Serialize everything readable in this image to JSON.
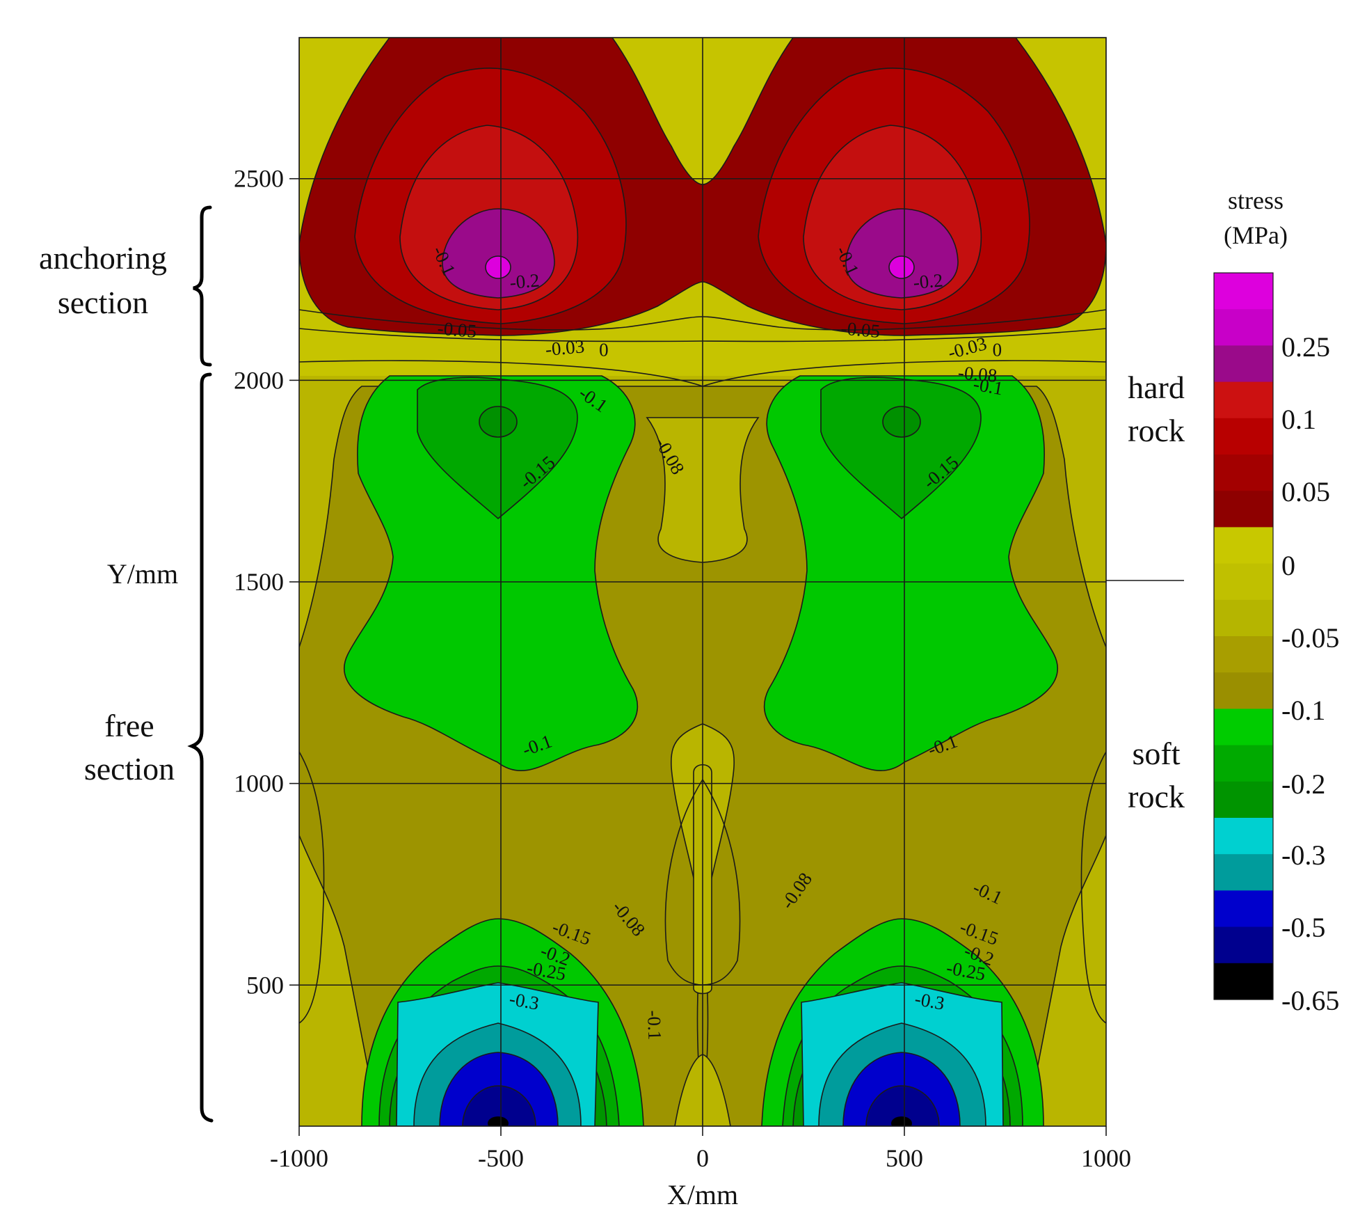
{
  "chart_data": {
    "type": "contour",
    "xlabel": "X/mm",
    "ylabel": "Y/mm",
    "xlim": [
      -1000,
      1000
    ],
    "ylim": [
      150,
      2850
    ],
    "x_ticks": [
      -1000,
      -500,
      0,
      500,
      1000
    ],
    "y_ticks": [
      500,
      1000,
      1500,
      2000,
      2500
    ],
    "grid": true,
    "colorbar": {
      "title_line1": "stress",
      "title_line2": "(MPa)",
      "tick_labels": [
        "0.25",
        "0.1",
        "0.05",
        "0",
        "-0.05",
        "-0.1",
        "-0.2",
        "-0.3",
        "-0.5",
        "-0.65"
      ],
      "colors": [
        "#dd00dd",
        "#c800c8",
        "#9a0a8a",
        "#cc1111",
        "#b80000",
        "#a30000",
        "#8e0000",
        "#c8c800",
        "#c0c000",
        "#b5b500",
        "#a89e00",
        "#9a8f00",
        "#00cc00",
        "#00aa00",
        "#009400",
        "#00d0d0",
        "#009c9c",
        "#0000cc",
        "#00008e",
        "#000000"
      ]
    },
    "annotations": {
      "anchoring_line1": "anchoring",
      "anchoring_line2": "section",
      "free_line1": "free",
      "free_line2": "section",
      "hard_line1": "hard",
      "hard_line2": "rock",
      "soft_line1": "soft",
      "soft_line2": "rock"
    },
    "contour_labels": [
      {
        "text": "-0.1",
        "x": -655,
        "y": 2290,
        "rot": 65
      },
      {
        "text": "-0.2",
        "x": -440,
        "y": 2230,
        "rot": -5
      },
      {
        "text": "-0.05",
        "x": -610,
        "y": 2110,
        "rot": 5
      },
      {
        "text": "-0.03",
        "x": -340,
        "y": 2065,
        "rot": -5
      },
      {
        "text": "0",
        "x": -245,
        "y": 2060,
        "rot": 0
      },
      {
        "text": "-0.1",
        "x": 345,
        "y": 2290,
        "rot": 65
      },
      {
        "text": "-0.2",
        "x": 560,
        "y": 2230,
        "rot": -5
      },
      {
        "text": "-0.05",
        "x": 390,
        "y": 2110,
        "rot": 5
      },
      {
        "text": "-0.03",
        "x": 660,
        "y": 2065,
        "rot": -15
      },
      {
        "text": "0",
        "x": 730,
        "y": 2060,
        "rot": 0
      },
      {
        "text": "-0.08",
        "x": 680,
        "y": 2000,
        "rot": 5
      },
      {
        "text": "-0.1",
        "x": 705,
        "y": 1970,
        "rot": 10
      },
      {
        "text": "-0.1",
        "x": -280,
        "y": 1940,
        "rot": 35
      },
      {
        "text": "-0.08",
        "x": -95,
        "y": 1805,
        "rot": 60
      },
      {
        "text": "-0.15",
        "x": -400,
        "y": 1760,
        "rot": -40
      },
      {
        "text": "-0.15",
        "x": 600,
        "y": 1760,
        "rot": -40
      },
      {
        "text": "-0.1",
        "x": -405,
        "y": 1080,
        "rot": -20
      },
      {
        "text": "-0.1",
        "x": 600,
        "y": 1080,
        "rot": -20
      },
      {
        "text": "-0.08",
        "x": 245,
        "y": 725,
        "rot": -55
      },
      {
        "text": "-0.1",
        "x": 700,
        "y": 715,
        "rot": 25
      },
      {
        "text": "-0.08",
        "x": -195,
        "y": 655,
        "rot": 50
      },
      {
        "text": "-0.15",
        "x": -330,
        "y": 615,
        "rot": 20
      },
      {
        "text": "-0.15",
        "x": 680,
        "y": 615,
        "rot": 20
      },
      {
        "text": "-0.2",
        "x": -370,
        "y": 560,
        "rot": 20
      },
      {
        "text": "-0.2",
        "x": 680,
        "y": 560,
        "rot": 20
      },
      {
        "text": "-0.25",
        "x": -390,
        "y": 520,
        "rot": 10
      },
      {
        "text": "-0.25",
        "x": 650,
        "y": 520,
        "rot": 10
      },
      {
        "text": "-0.3",
        "x": -445,
        "y": 445,
        "rot": 10
      },
      {
        "text": "-0.3",
        "x": 560,
        "y": 445,
        "rot": 10
      },
      {
        "text": "-0.1",
        "x": -135,
        "y": 400,
        "rot": 88
      }
    ]
  }
}
